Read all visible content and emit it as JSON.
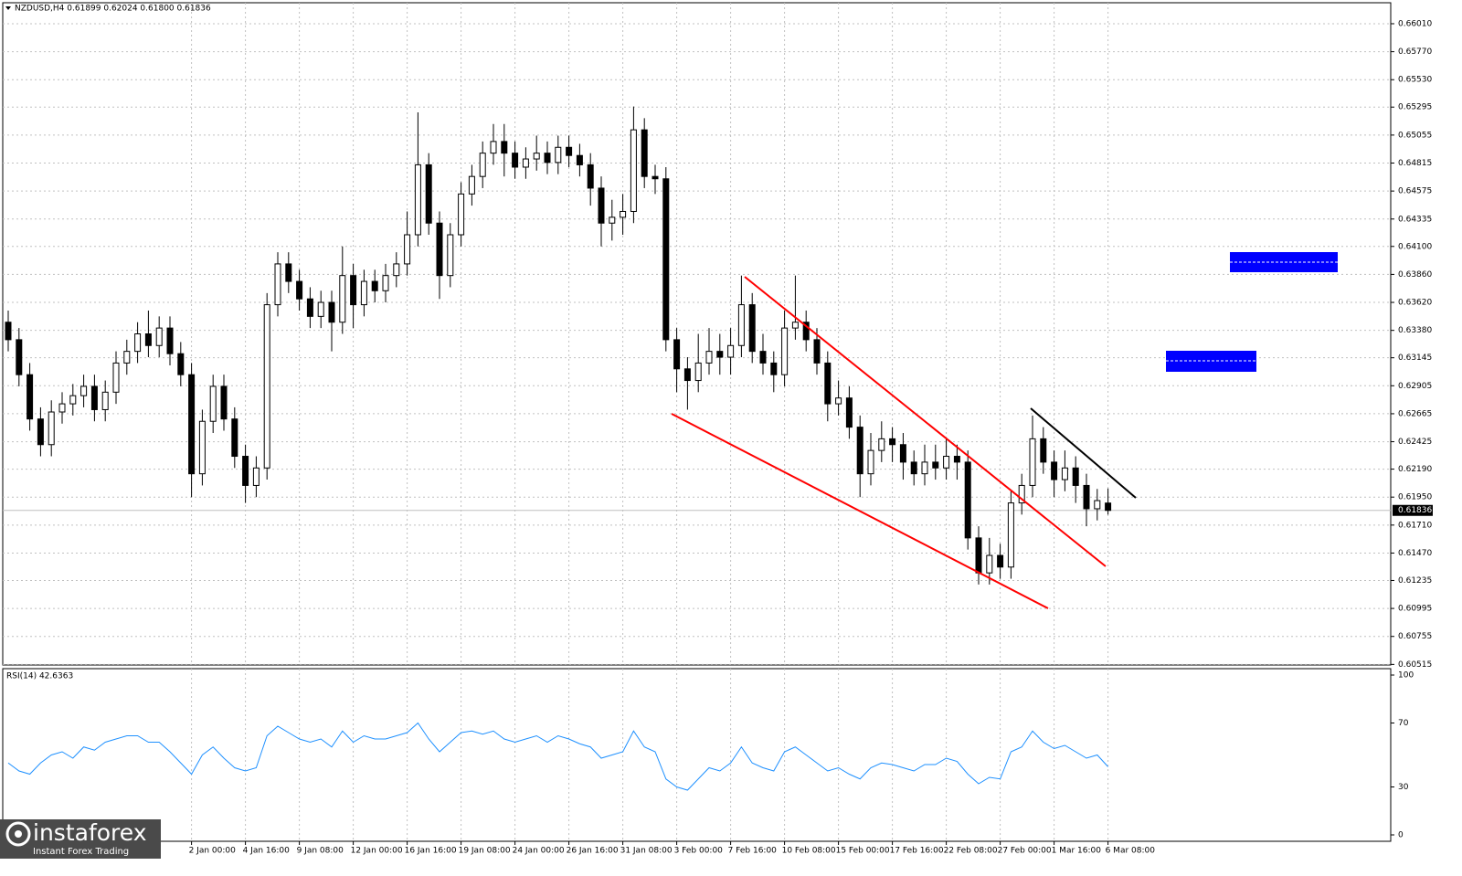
{
  "chart_data": [
    {
      "type": "candlestick",
      "title": "NZDUSD,H4  0.61899 0.62024 0.61800 0.61836",
      "categories": [
        null,
        null,
        null,
        null,
        null,
        null,
        null,
        null,
        null,
        null,
        null,
        null,
        null,
        null,
        null,
        null,
        null,
        "2 Jan 00:00",
        null,
        null,
        null,
        null,
        "4 Jan 16:00",
        null,
        null,
        null,
        null,
        "9 Jan 08:00",
        null,
        null,
        null,
        null,
        "12 Jan 00:00",
        null,
        null,
        null,
        null,
        "16 Jan 16:00",
        null,
        null,
        null,
        null,
        "19 Jan 08:00",
        null,
        null,
        null,
        null,
        "24 Jan 00:00",
        null,
        null,
        null,
        null,
        "26 Jan 16:00",
        null,
        null,
        null,
        null,
        "31 Jan 08:00",
        null,
        null,
        null,
        null,
        "3 Feb 00:00",
        null,
        null,
        null,
        null,
        "7 Feb 16:00",
        null,
        null,
        null,
        null,
        "10 Feb 08:00",
        null,
        null,
        null,
        null,
        "15 Feb 00:00",
        null,
        null,
        null,
        null,
        "17 Feb 16:00",
        null,
        null,
        null,
        null,
        "22 Feb 08:00",
        null,
        null,
        null,
        null,
        "27 Feb 00:00",
        null,
        null,
        null,
        null,
        "1 Mar 16:00",
        null,
        null,
        null,
        null,
        "6 Mar 08:00"
      ],
      "open": [
        0.6345,
        0.633,
        0.63,
        0.6262,
        0.624,
        0.6268,
        0.6275,
        0.6282,
        0.629,
        0.627,
        0.6285,
        0.631,
        0.632,
        0.6335,
        0.6325,
        0.634,
        0.6318,
        0.63,
        0.6215,
        0.626,
        0.629,
        0.6262,
        0.623,
        0.6205,
        0.622,
        0.636,
        0.6395,
        0.638,
        0.6365,
        0.635,
        0.6362,
        0.6345,
        0.6385,
        0.636,
        0.638,
        0.6372,
        0.6385,
        0.6395,
        0.642,
        0.648,
        0.643,
        0.6385,
        0.642,
        0.6455,
        0.647,
        0.649,
        0.65,
        0.649,
        0.6478,
        0.6485,
        0.649,
        0.6482,
        0.6495,
        0.6488,
        0.648,
        0.646,
        0.643,
        0.6435,
        0.644,
        0.651,
        0.647,
        0.6468,
        0.633,
        0.6305,
        0.6295,
        0.631,
        0.632,
        0.6315,
        0.6325,
        0.636,
        0.632,
        0.631,
        0.63,
        0.634,
        0.6345,
        0.633,
        0.631,
        0.6275,
        0.628,
        0.6255,
        0.6215,
        0.6235,
        0.6245,
        0.624,
        0.6225,
        0.6215,
        0.6225,
        0.622,
        0.623,
        0.6225,
        0.616,
        0.613,
        0.6145,
        0.6135,
        0.619,
        0.6205,
        0.6245,
        0.6225,
        0.621,
        0.622,
        0.6205,
        0.6185,
        0.61899
      ],
      "high": [
        0.6355,
        0.634,
        0.631,
        0.6272,
        0.6278,
        0.6285,
        0.6292,
        0.63,
        0.63,
        0.6295,
        0.632,
        0.633,
        0.6345,
        0.6355,
        0.635,
        0.635,
        0.6328,
        0.631,
        0.627,
        0.63,
        0.63,
        0.6272,
        0.624,
        0.623,
        0.637,
        0.6405,
        0.6405,
        0.639,
        0.6375,
        0.6372,
        0.6372,
        0.641,
        0.6395,
        0.639,
        0.639,
        0.6395,
        0.6405,
        0.644,
        0.6525,
        0.649,
        0.644,
        0.643,
        0.6465,
        0.648,
        0.65,
        0.6515,
        0.6515,
        0.65,
        0.6495,
        0.6505,
        0.65,
        0.6505,
        0.6505,
        0.6498,
        0.649,
        0.647,
        0.645,
        0.6455,
        0.653,
        0.652,
        0.648,
        0.6478,
        0.634,
        0.6315,
        0.6335,
        0.634,
        0.6335,
        0.634,
        0.6385,
        0.637,
        0.6335,
        0.632,
        0.6355,
        0.6385,
        0.6355,
        0.634,
        0.632,
        0.6295,
        0.629,
        0.6265,
        0.625,
        0.626,
        0.6255,
        0.625,
        0.6235,
        0.624,
        0.624,
        0.6245,
        0.624,
        0.6235,
        0.617,
        0.616,
        0.6155,
        0.62,
        0.6215,
        0.6265,
        0.6255,
        0.6235,
        0.6235,
        0.623,
        0.6215,
        0.6202,
        0.62024
      ],
      "low": [
        0.632,
        0.629,
        0.6252,
        0.623,
        0.623,
        0.6258,
        0.6265,
        0.6272,
        0.626,
        0.626,
        0.6275,
        0.63,
        0.631,
        0.6315,
        0.6315,
        0.6308,
        0.629,
        0.6195,
        0.6205,
        0.625,
        0.6252,
        0.622,
        0.619,
        0.6195,
        0.621,
        0.635,
        0.637,
        0.6355,
        0.634,
        0.634,
        0.632,
        0.6335,
        0.634,
        0.635,
        0.6362,
        0.6362,
        0.6375,
        0.6385,
        0.641,
        0.642,
        0.6365,
        0.6375,
        0.641,
        0.6445,
        0.646,
        0.648,
        0.647,
        0.6468,
        0.6468,
        0.6475,
        0.6472,
        0.6472,
        0.6478,
        0.647,
        0.6445,
        0.641,
        0.6415,
        0.642,
        0.643,
        0.646,
        0.6455,
        0.632,
        0.6285,
        0.627,
        0.6285,
        0.63,
        0.63,
        0.63,
        0.6315,
        0.631,
        0.63,
        0.6285,
        0.629,
        0.633,
        0.632,
        0.63,
        0.626,
        0.6265,
        0.6245,
        0.6195,
        0.6205,
        0.6225,
        0.6225,
        0.621,
        0.6205,
        0.6205,
        0.621,
        0.621,
        0.621,
        0.615,
        0.612,
        0.612,
        0.6125,
        0.6125,
        0.618,
        0.6195,
        0.6215,
        0.6195,
        0.62,
        0.619,
        0.617,
        0.6175,
        0.618
      ],
      "close": [
        0.633,
        0.63,
        0.6262,
        0.624,
        0.6268,
        0.6275,
        0.6282,
        0.629,
        0.627,
        0.6285,
        0.631,
        0.632,
        0.6335,
        0.6325,
        0.634,
        0.6318,
        0.63,
        0.6215,
        0.626,
        0.629,
        0.6262,
        0.623,
        0.6205,
        0.622,
        0.636,
        0.6395,
        0.638,
        0.6365,
        0.635,
        0.6362,
        0.6345,
        0.6385,
        0.636,
        0.638,
        0.6372,
        0.6385,
        0.6395,
        0.642,
        0.648,
        0.643,
        0.6385,
        0.642,
        0.6455,
        0.647,
        0.649,
        0.65,
        0.649,
        0.6478,
        0.6485,
        0.649,
        0.6482,
        0.6495,
        0.6488,
        0.648,
        0.646,
        0.643,
        0.6435,
        0.644,
        0.651,
        0.647,
        0.6468,
        0.633,
        0.6305,
        0.6295,
        0.631,
        0.632,
        0.6315,
        0.6325,
        0.636,
        0.632,
        0.631,
        0.63,
        0.634,
        0.6345,
        0.633,
        0.631,
        0.6275,
        0.628,
        0.6255,
        0.6215,
        0.6235,
        0.6245,
        0.624,
        0.6225,
        0.6215,
        0.6225,
        0.622,
        0.623,
        0.6225,
        0.616,
        0.613,
        0.6145,
        0.6135,
        0.619,
        0.6205,
        0.6245,
        0.6225,
        0.621,
        0.622,
        0.6205,
        0.6185,
        0.6192,
        0.61836
      ],
      "color": "#000000",
      "current_price": 0.61836,
      "ylim": [
        0.6051,
        0.6619
      ],
      "yticks": [
        {
          "value": 0.6601,
          "label": "0.66010"
        },
        {
          "value": 0.6577,
          "label": "0.65770"
        },
        {
          "value": 0.6553,
          "label": "0.65530"
        },
        0.65295,
        0.65055,
        0.64815,
        0.64575,
        0.64335,
        {
          "value": 0.641,
          "label": "0.64100"
        },
        {
          "value": 0.6386,
          "label": "0.63860"
        },
        {
          "value": 0.6362,
          "label": "0.63620"
        },
        {
          "value": 0.6338,
          "label": "0.63380"
        },
        0.63145,
        0.62905,
        0.62665,
        0.62425,
        {
          "value": 0.6219,
          "label": "0.62190"
        },
        {
          "value": 0.6195,
          "label": "0.61950"
        },
        {
          "value": 0.6171,
          "label": "0.61710"
        },
        {
          "value": 0.6147,
          "label": "0.61470"
        },
        0.61235,
        0.60995,
        0.60755,
        0.60515
      ],
      "grid": true
    },
    {
      "type": "line",
      "title": "RSI(14) 42.6363",
      "values": [
        45,
        40,
        38,
        45,
        50,
        52,
        48,
        55,
        53,
        58,
        60,
        62,
        62,
        58,
        58,
        52,
        45,
        38,
        50,
        55,
        48,
        42,
        40,
        42,
        62,
        68,
        64,
        60,
        58,
        60,
        55,
        65,
        58,
        62,
        60,
        60,
        62,
        64,
        70,
        60,
        52,
        58,
        64,
        65,
        63,
        65,
        60,
        58,
        60,
        62,
        58,
        62,
        60,
        57,
        55,
        48,
        50,
        52,
        65,
        55,
        52,
        35,
        30,
        28,
        35,
        42,
        40,
        45,
        55,
        45,
        42,
        40,
        52,
        55,
        50,
        45,
        40,
        42,
        38,
        35,
        42,
        45,
        44,
        42,
        40,
        44,
        44,
        48,
        46,
        38,
        32,
        36,
        35,
        52,
        55,
        65,
        58,
        54,
        56,
        52,
        48,
        50,
        42.6363
      ],
      "color": "#1e90ff",
      "ylim": [
        -4,
        104
      ],
      "yticks": [
        100,
        70,
        30,
        0
      ],
      "grid": false
    }
  ],
  "logo": {
    "name": "instaforex",
    "tagline": "Instant Forex Trading"
  }
}
